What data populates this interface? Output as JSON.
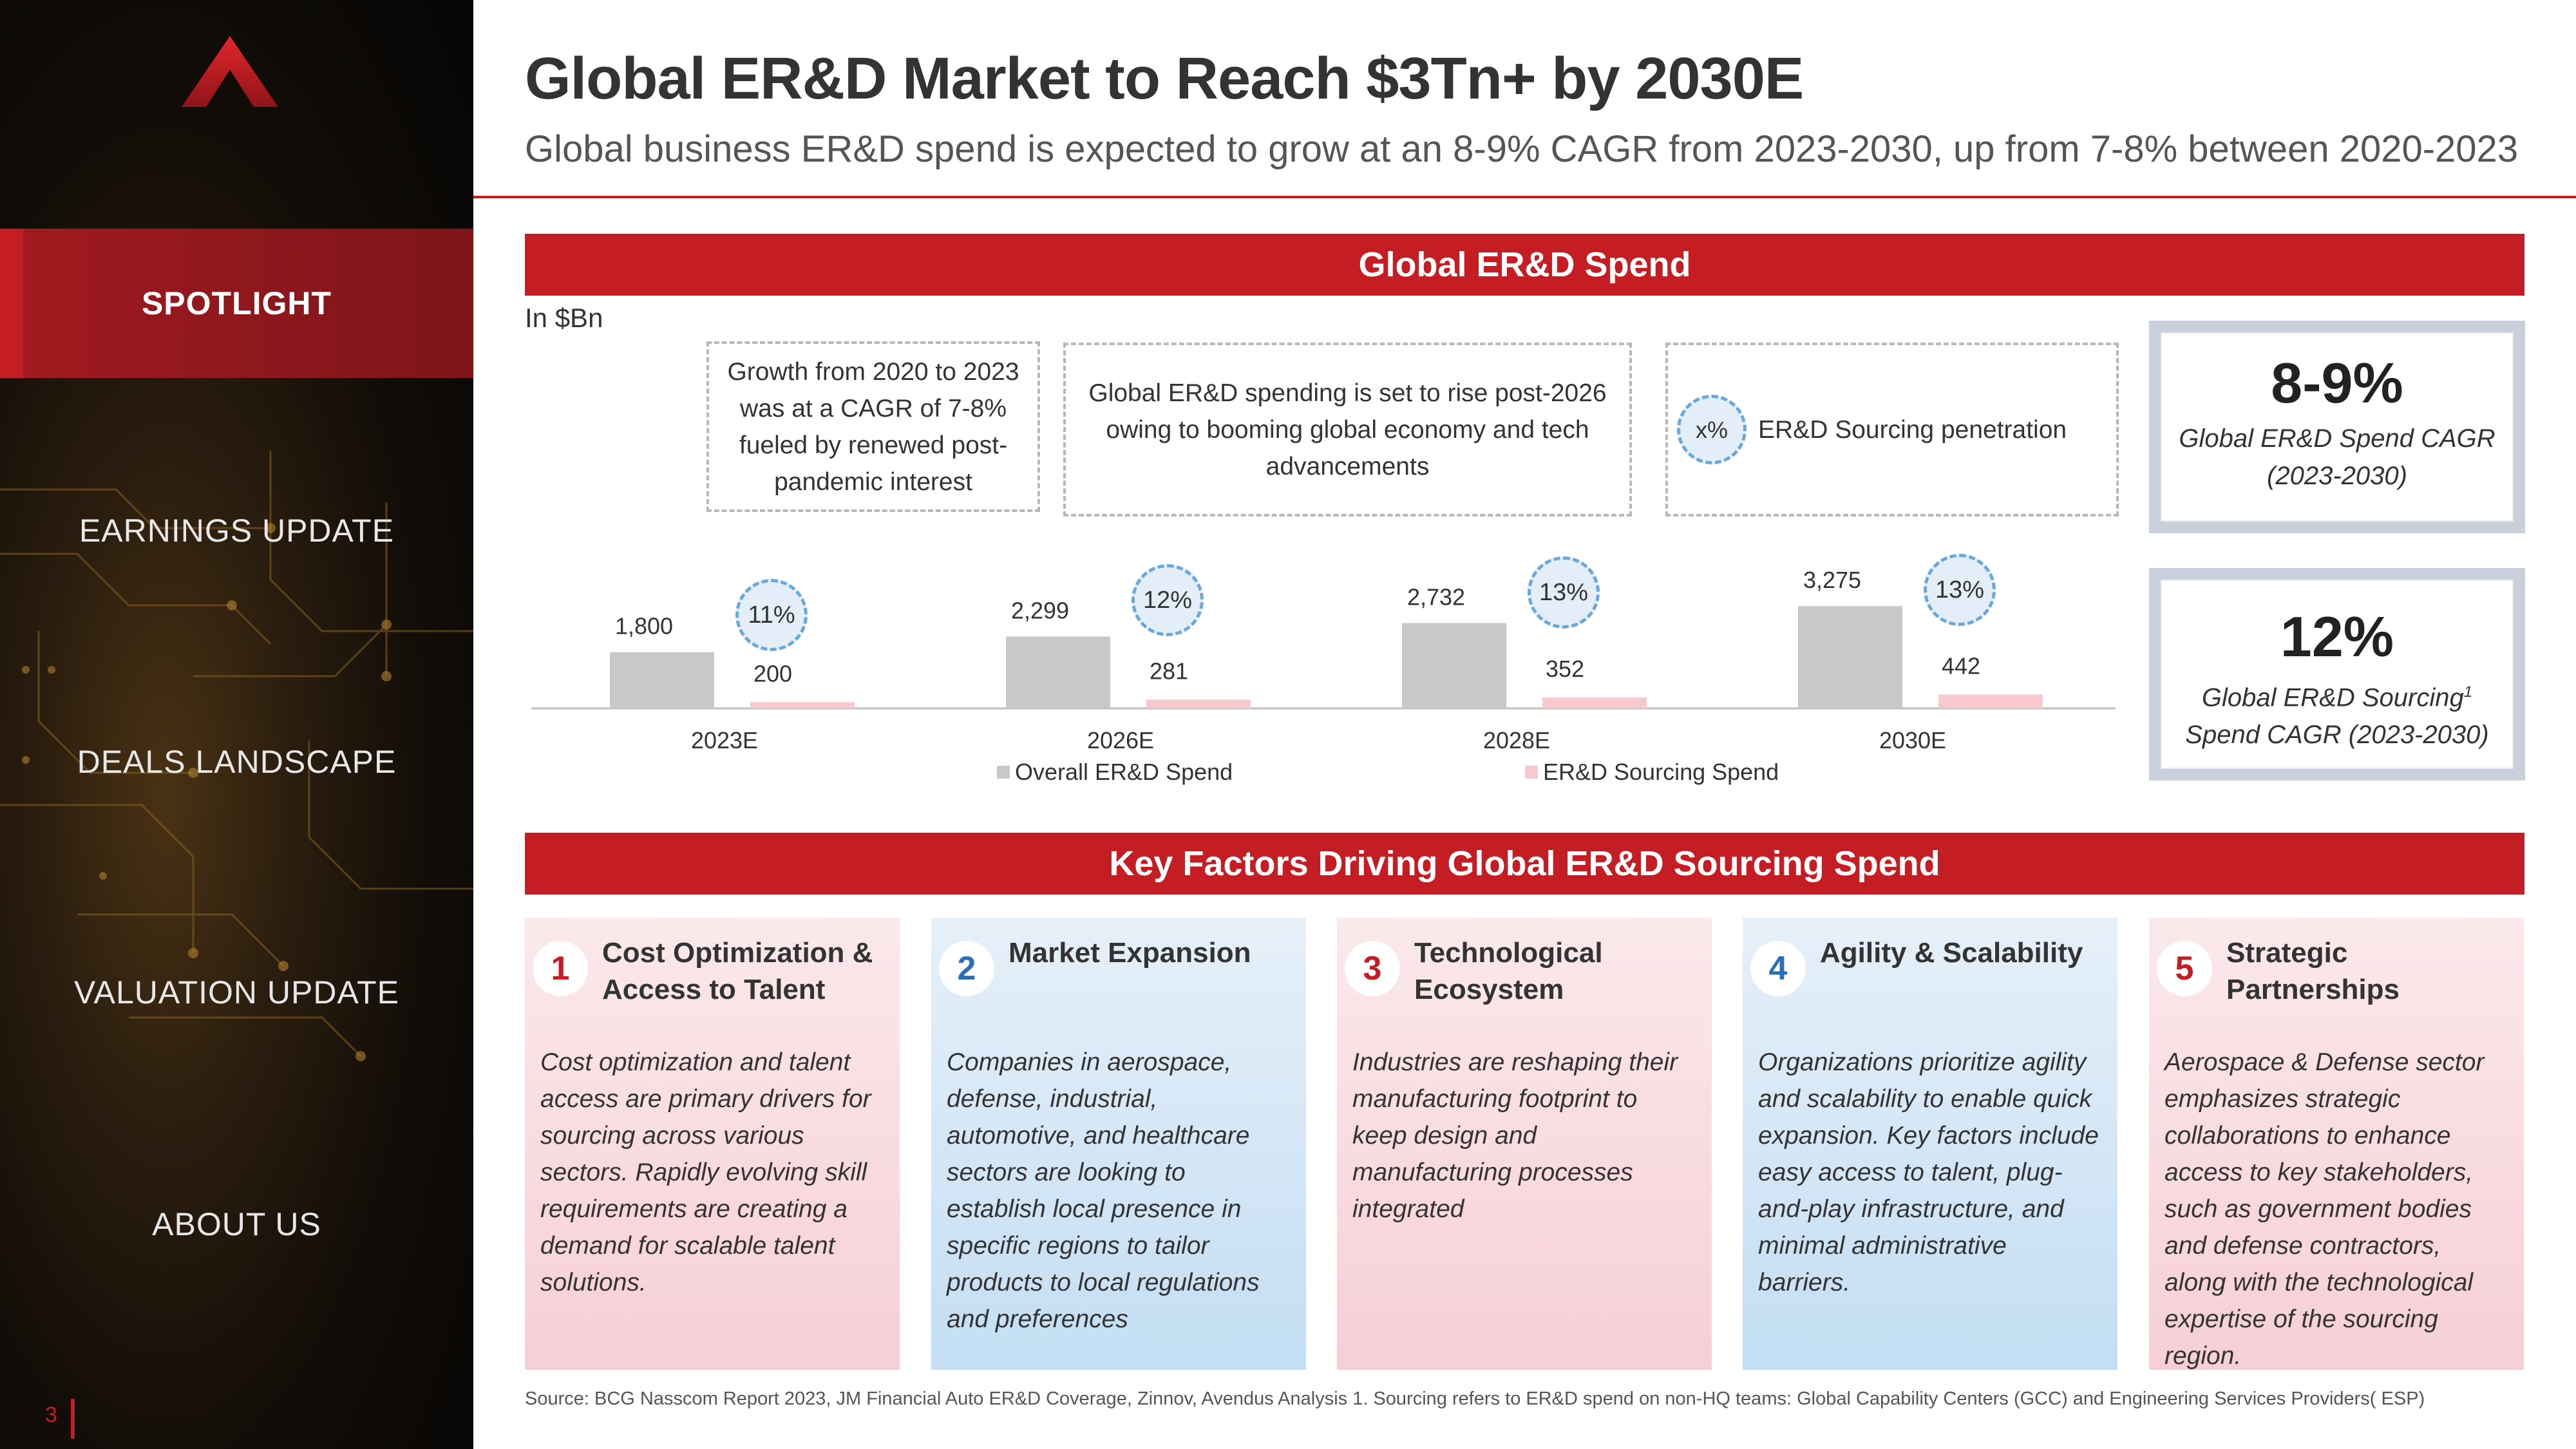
{
  "sidebar": {
    "items": [
      {
        "label": "SPOTLIGHT",
        "active": true
      },
      {
        "label": "EARNINGS UPDATE"
      },
      {
        "label": "DEALS LANDSCAPE"
      },
      {
        "label": "VALUATION UPDATE"
      },
      {
        "label": "ABOUT US"
      }
    ],
    "page_number": "3",
    "accent": "#c41e24"
  },
  "header": {
    "title": "Global ER&D Market to Reach $3Tn+ by 2030E",
    "subtitle": "Global business ER&D spend is expected to grow at an 8-9% CAGR from 2023-2030, up from 7-8% between 2020-2023"
  },
  "spend_section": {
    "banner": "Global ER&D Spend",
    "units": "In $Bn",
    "annotations": [
      "Growth from 2020 to 2023 was at a CAGR of 7-8% fueled by renewed post-pandemic interest",
      "Global ER&D spending is set to rise post-2026 owing to booming global economy and tech advancements",
      "ER&D Sourcing penetration"
    ],
    "penetration_symbol": "x%"
  },
  "chart_data": {
    "type": "bar",
    "categories": [
      "2023E",
      "2026E",
      "2028E",
      "2030E"
    ],
    "series": [
      {
        "name": "Overall ER&D Spend",
        "values": [
          1800,
          2299,
          2732,
          3275
        ],
        "labels": [
          "1,800",
          "2,299",
          "2,732",
          "3,275"
        ],
        "color": "#c8c8c8"
      },
      {
        "name": "ER&D Sourcing Spend",
        "values": [
          200,
          281,
          352,
          442
        ],
        "labels": [
          "200",
          "281",
          "352",
          "442"
        ],
        "color": "#f7c8cd"
      }
    ],
    "sourcing_penetration": [
      "11%",
      "12%",
      "13%",
      "13%"
    ],
    "ylabel": "In $Bn",
    "legend": "bottom"
  },
  "kpis": [
    {
      "value": "8-9%",
      "label": "Global ER&D Spend CAGR (2023-2030)"
    },
    {
      "value": "12%",
      "label_main": "Global ER&D Sourcing",
      "label_sup": "1",
      "label_rest": "Spend CAGR (2023-2030)"
    }
  ],
  "factors_section": {
    "banner": "Key Factors Driving Global ER&D  Sourcing Spend",
    "cards": [
      {
        "number": "1",
        "title": "Cost Optimization & Access to Talent",
        "body": "Cost optimization and talent access are primary drivers for sourcing across various sectors. Rapidly evolving skill requirements are creating a demand for scalable talent solutions."
      },
      {
        "number": "2",
        "title": "Market Expansion",
        "body": "Companies in aerospace, defense, industrial, automotive, and healthcare sectors are looking to establish local presence in specific regions to tailor products to local regulations and preferences"
      },
      {
        "number": "3",
        "title": "Technological Ecosystem",
        "body": "Industries are reshaping their manufacturing footprint to keep design and manufacturing processes integrated"
      },
      {
        "number": "4",
        "title": "Agility & Scalability",
        "body": "Organizations prioritize agility and scalability to enable quick expansion. Key factors include easy access to talent, plug-and-play infrastructure, and minimal administrative barriers."
      },
      {
        "number": "5",
        "title": "Strategic Partnerships",
        "body": "Aerospace & Defense sector emphasizes strategic collaborations to enhance access to key stakeholders, such as government bodies and defense contractors, along with the technological expertise of the sourcing region."
      }
    ]
  },
  "source": "Source: BCG Nasscom Report 2023, JM Financial Auto ER&D Coverage, Zinnov, Avendus Analysis 1. Sourcing refers to ER&D spend on non-HQ teams: Global Capability Centers (GCC) and Engineering Services Providers( ESP)"
}
